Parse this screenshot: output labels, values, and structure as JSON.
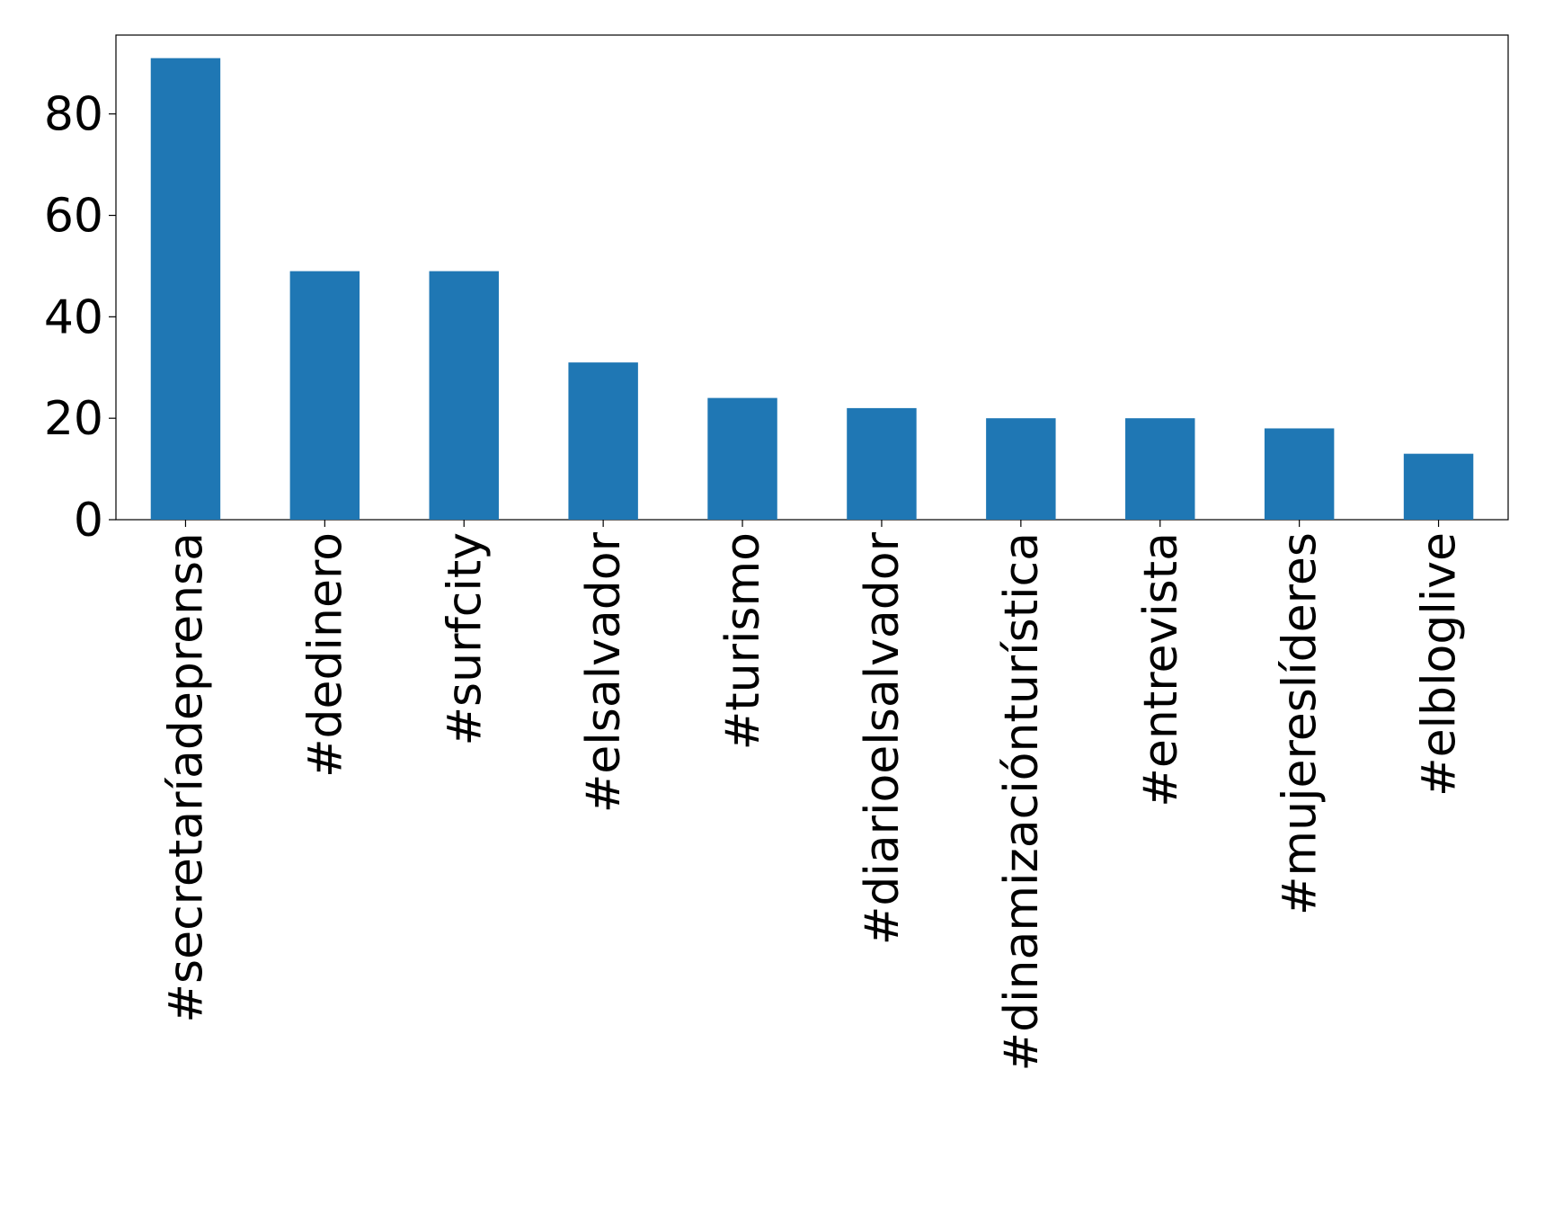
{
  "chart_data": {
    "type": "bar",
    "categories": [
      "#secretaríadeprensa",
      "#dedinero",
      "#surfcity",
      "#elsalvador",
      "#turismo",
      "#diarioelsalvador",
      "#dinamizaciónturística",
      "#entrevista",
      "#mujereslíderes",
      "#elbloglive"
    ],
    "values": [
      91,
      49,
      49,
      31,
      24,
      22,
      20,
      20,
      18,
      13
    ],
    "color": "#1f77b4",
    "ylim": [
      0,
      95.55
    ],
    "yticks": [
      0,
      20,
      40,
      60,
      80
    ],
    "grid": false
  }
}
